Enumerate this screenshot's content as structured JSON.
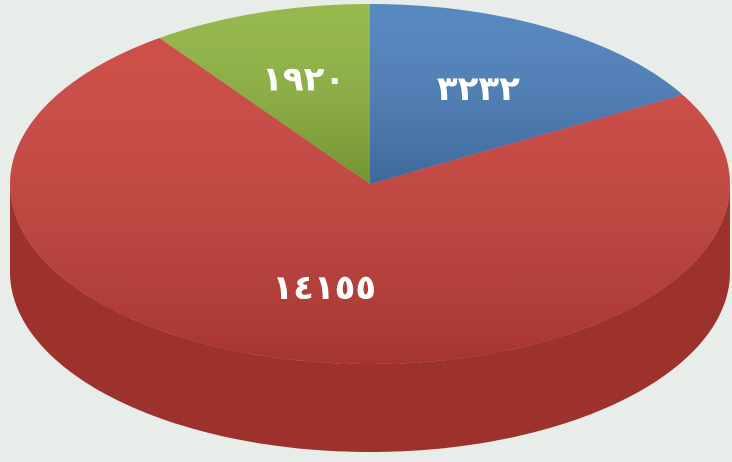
{
  "chart_data": {
    "type": "pie",
    "values": [
      3232,
      14155,
      1920
    ],
    "value_labels": [
      "٣٢٣٢",
      "١٤١٥٥",
      "١٩٢٠"
    ],
    "colors": [
      "#4a7ebb",
      "#c9403a",
      "#8db33e"
    ]
  }
}
